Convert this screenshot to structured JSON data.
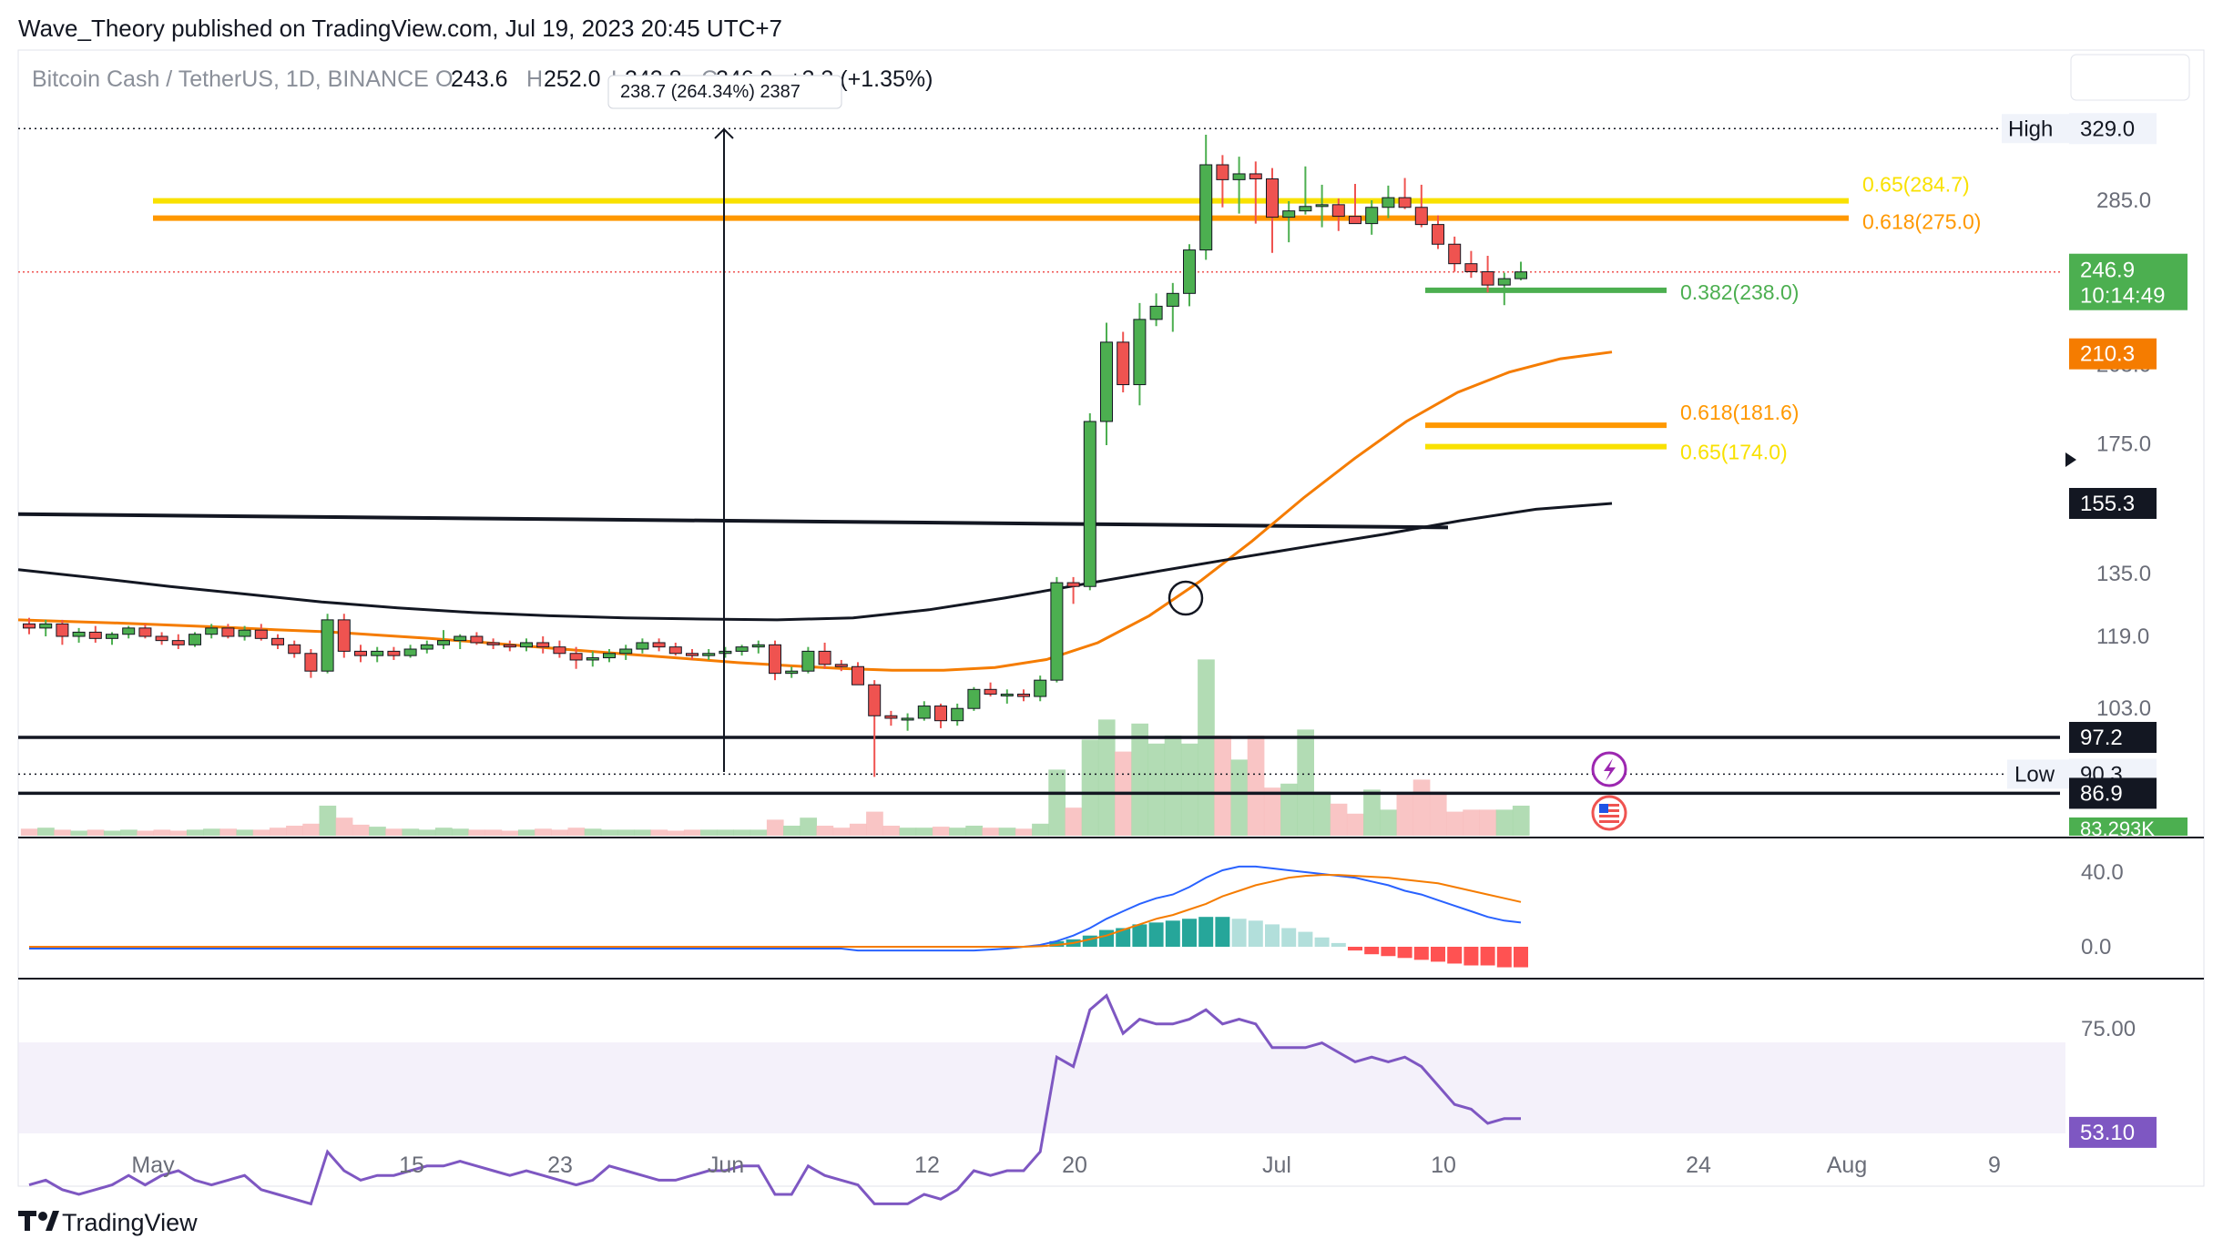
{
  "header": {
    "publisher": "Wave_Theory published on TradingView.com, Jul 19, 2023 20:45 UTC+7",
    "symbol": "Bitcoin Cash / TetherUS, 1D, BINANCE",
    "o_key": "O",
    "o_val": "243.6",
    "h_key": "H",
    "h_val": "252.0",
    "l_key": "L",
    "l_val": "242.8",
    "c_key": "C",
    "c_val": "246.9",
    "change": "+3.3 (+1.35%)",
    "measure_label": "238.7 (264.34%) 2387"
  },
  "footer": {
    "brand": "TradingView"
  },
  "colors": {
    "up": "#4caf50",
    "down": "#ef5350",
    "ema_orange": "#f57c00",
    "ma_black": "#131722",
    "fib_yellow": "#f9e100",
    "fib_orange": "#ff9800",
    "fib_green": "#4caf50",
    "macd_blue": "#2962ff",
    "rsi": "#7e57c2",
    "text": "#131722"
  },
  "chart_data": [
    {
      "type": "candlestick",
      "title": "Bitcoin Cash / TetherUS, 1D, BINANCE",
      "yscale": "log",
      "y_ticks": [
        "285.0",
        "205.0",
        "175.0",
        "135.0",
        "119.0",
        "103.0"
      ],
      "x_ticks": [
        "May",
        "15",
        "23",
        "Jun",
        "12",
        "20",
        "Jul",
        "10",
        "24",
        "Aug",
        "9"
      ],
      "grid": false,
      "candles": [
        [
          122.0,
          123.5,
          119.5,
          121.0
        ],
        [
          121.0,
          123.0,
          119.0,
          122.0
        ],
        [
          122.0,
          123.0,
          117.0,
          119.0
        ],
        [
          119.0,
          121.0,
          117.5,
          120.0
        ],
        [
          120.0,
          121.5,
          117.5,
          118.5
        ],
        [
          118.5,
          120.0,
          117.0,
          119.5
        ],
        [
          119.5,
          121.5,
          118.5,
          121.0
        ],
        [
          121.0,
          122.0,
          118.5,
          119.0
        ],
        [
          119.0,
          120.0,
          117.0,
          118.0
        ],
        [
          118.0,
          119.5,
          116.0,
          117.0
        ],
        [
          117.0,
          120.0,
          116.5,
          119.5
        ],
        [
          119.5,
          122.0,
          118.5,
          121.0
        ],
        [
          121.0,
          122.0,
          118.5,
          119.0
        ],
        [
          119.0,
          121.5,
          118.0,
          120.5
        ],
        [
          120.5,
          122.0,
          118.0,
          118.5
        ],
        [
          118.5,
          119.5,
          116.0,
          117.0
        ],
        [
          117.0,
          118.0,
          114.0,
          115.0
        ],
        [
          115.0,
          116.0,
          109.5,
          111.0
        ],
        [
          111.0,
          124.5,
          110.5,
          123.0
        ],
        [
          123.0,
          124.5,
          114.0,
          115.5
        ],
        [
          115.5,
          117.0,
          113.0,
          114.5
        ],
        [
          114.5,
          116.5,
          113.0,
          115.5
        ],
        [
          115.5,
          116.5,
          113.5,
          114.5
        ],
        [
          114.5,
          117.0,
          114.0,
          116.0
        ],
        [
          116.0,
          118.0,
          115.0,
          117.0
        ],
        [
          117.0,
          120.5,
          116.0,
          118.0
        ],
        [
          118.0,
          119.5,
          116.0,
          119.0
        ],
        [
          119.0,
          120.0,
          117.0,
          117.5
        ],
        [
          117.5,
          118.5,
          116.0,
          117.0
        ],
        [
          117.0,
          118.0,
          115.5,
          116.5
        ],
        [
          116.5,
          118.5,
          115.5,
          117.5
        ],
        [
          117.5,
          119.0,
          115.0,
          116.5
        ],
        [
          116.5,
          118.0,
          114.0,
          115.0
        ],
        [
          115.0,
          116.5,
          111.5,
          113.5
        ],
        [
          113.5,
          115.5,
          112.0,
          114.0
        ],
        [
          114.0,
          116.0,
          113.0,
          115.0
        ],
        [
          115.0,
          117.0,
          113.5,
          116.0
        ],
        [
          116.0,
          118.5,
          115.0,
          117.5
        ],
        [
          117.5,
          118.5,
          115.5,
          116.5
        ],
        [
          116.5,
          117.5,
          114.5,
          115.0
        ],
        [
          115.0,
          116.0,
          113.5,
          114.5
        ],
        [
          114.5,
          116.0,
          113.5,
          115.0
        ],
        [
          115.0,
          116.5,
          114.0,
          115.5
        ],
        [
          115.5,
          117.0,
          114.5,
          116.5
        ],
        [
          116.5,
          118.0,
          115.0,
          117.0
        ],
        [
          117.0,
          118.0,
          109.0,
          110.5
        ],
        [
          110.5,
          112.0,
          109.5,
          111.0
        ],
        [
          111.0,
          116.5,
          110.5,
          115.5
        ],
        [
          115.5,
          117.5,
          111.5,
          112.5
        ],
        [
          112.5,
          113.5,
          111.0,
          112.0
        ],
        [
          112.0,
          113.0,
          109.0,
          108.0
        ],
        [
          108.0,
          109.0,
          89.8,
          101.5
        ],
        [
          101.5,
          102.5,
          99.5,
          101.0
        ],
        [
          101.0,
          102.0,
          98.5,
          101.0
        ],
        [
          101.0,
          104.5,
          100.5,
          103.5
        ],
        [
          103.5,
          104.0,
          99.0,
          100.5
        ],
        [
          100.5,
          104.0,
          99.5,
          103.0
        ],
        [
          103.0,
          107.5,
          102.5,
          107.0
        ],
        [
          107.0,
          108.5,
          105.5,
          106.0
        ],
        [
          106.0,
          107.0,
          104.0,
          106.0
        ],
        [
          106.0,
          107.0,
          104.5,
          105.5
        ],
        [
          105.5,
          110.0,
          104.5,
          109.0
        ],
        [
          109.0,
          134.0,
          108.5,
          132.5
        ],
        [
          132.5,
          134.0,
          127.0,
          131.5
        ],
        [
          131.5,
          186.0,
          130.5,
          183.0
        ],
        [
          183.0,
          223.0,
          174.5,
          214.5
        ],
        [
          214.5,
          219.0,
          194.0,
          197.0
        ],
        [
          197.0,
          232.0,
          189.0,
          224.5
        ],
        [
          224.5,
          236.5,
          221.5,
          230.5
        ],
        [
          230.5,
          241.5,
          219.0,
          236.5
        ],
        [
          236.5,
          261.0,
          230.5,
          258.0
        ],
        [
          258.0,
          325.0,
          253.0,
          306.0
        ],
        [
          306.0,
          312.0,
          281.0,
          297.0
        ],
        [
          297.0,
          311.0,
          277.5,
          300.5
        ],
        [
          300.5,
          308.0,
          272.0,
          297.5
        ],
        [
          297.5,
          304.0,
          256.5,
          275.5
        ],
        [
          275.5,
          284.5,
          262.0,
          279.0
        ],
        [
          279.0,
          305.0,
          277.0,
          281.5
        ],
        [
          281.5,
          294.0,
          270.0,
          282.5
        ],
        [
          282.5,
          286.0,
          268.0,
          276.0
        ],
        [
          276.0,
          294.5,
          273.5,
          272.0
        ],
        [
          272.0,
          285.0,
          266.0,
          281.0
        ],
        [
          281.0,
          293.5,
          275.0,
          286.5
        ],
        [
          286.5,
          298.0,
          280.0,
          281.0
        ],
        [
          281.0,
          294.0,
          270.0,
          271.5
        ],
        [
          271.5,
          276.5,
          258.5,
          261.0
        ],
        [
          261.0,
          265.0,
          247.0,
          251.0
        ],
        [
          251.0,
          257.5,
          244.0,
          247.0
        ],
        [
          247.0,
          255.0,
          237.0,
          240.5
        ],
        [
          240.5,
          246.5,
          231.0,
          243.6
        ],
        [
          243.6,
          252.0,
          242.8,
          246.9
        ]
      ],
      "ema_orange": [
        123,
        122.6,
        122.2,
        121.7,
        121.2,
        120.6,
        120.1,
        119.3,
        118.5,
        117.6,
        116.6,
        115.6,
        114.7,
        113.8,
        112.9,
        112.2,
        111.6,
        111.2,
        111.2,
        111.8,
        113.6,
        117.5,
        124.0,
        133.0,
        144.0,
        157.0,
        170.0,
        183.0,
        194.0,
        202.0,
        207.5,
        210.3
      ],
      "ma_black": [
        136.0,
        133.8,
        131.5,
        129.5,
        127.5,
        126.0,
        124.8,
        124.0,
        123.5,
        123.2,
        123.0,
        123.5,
        125.5,
        128.5,
        132.0,
        135.5,
        139.0,
        142.5,
        146.0,
        150.0,
        153.5,
        155.3
      ],
      "trendline_black": [
        152.0,
        148.0
      ],
      "horizontal_levels": [
        {
          "label": "97.2",
          "value": 97.2
        },
        {
          "label": "86.9",
          "value": 86.9
        }
      ],
      "high": {
        "label": "High",
        "value": "329.0"
      },
      "low": {
        "label": "Low",
        "value": "90.3"
      },
      "last_price": {
        "value": "246.9",
        "countdown": "10:14:49"
      },
      "ema_last": "210.3",
      "ma_last": "155.3",
      "volume_last": "83.293K",
      "fib_levels": [
        {
          "label": "0.65(284.7)",
          "value": 284.7,
          "color": "#f9e100"
        },
        {
          "label": "0.618(275.0)",
          "value": 275.0,
          "color": "#ff9800"
        },
        {
          "label": "0.382(238.0)",
          "value": 238.0,
          "color": "#4caf50"
        },
        {
          "label": "0.618(181.6)",
          "value": 181.6,
          "color": "#ff9800"
        },
        {
          "label": "0.65(174.0)",
          "value": 174.0,
          "color": "#f9e100"
        }
      ],
      "volume": [
        0.35,
        0.4,
        0.3,
        0.25,
        0.3,
        0.25,
        0.3,
        0.25,
        0.3,
        0.25,
        0.3,
        0.35,
        0.35,
        0.3,
        0.3,
        0.4,
        0.5,
        0.6,
        1.5,
        0.9,
        0.55,
        0.45,
        0.35,
        0.35,
        0.3,
        0.4,
        0.35,
        0.3,
        0.3,
        0.25,
        0.3,
        0.35,
        0.3,
        0.4,
        0.35,
        0.3,
        0.3,
        0.3,
        0.3,
        0.25,
        0.3,
        0.3,
        0.3,
        0.3,
        0.3,
        0.8,
        0.5,
        0.9,
        0.5,
        0.4,
        0.6,
        1.2,
        0.5,
        0.4,
        0.4,
        0.45,
        0.4,
        0.5,
        0.4,
        0.4,
        0.35,
        0.6,
        3.3,
        1.4,
        4.8,
        5.8,
        4.2,
        5.6,
        4.6,
        5.0,
        4.6,
        8.8,
        5.0,
        3.8,
        5.0,
        2.4,
        2.6,
        5.3,
        2.2,
        1.6,
        1.1,
        2.3,
        1.3,
        2.1,
        2.8,
        2.2,
        1.2,
        1.3,
        1.3,
        1.3,
        1.5
      ]
    },
    {
      "type": "macd",
      "y_ticks": [
        "40.0",
        "0.0"
      ],
      "histogram": [
        0,
        0,
        0,
        0,
        0,
        0,
        0,
        0,
        0,
        0,
        0,
        0,
        0,
        0,
        0,
        0,
        0,
        0,
        0,
        0,
        0,
        0,
        0,
        0,
        0,
        0,
        0,
        0,
        0,
        0,
        0,
        0,
        0,
        0,
        0,
        0,
        0,
        0,
        0,
        0,
        0,
        0,
        0,
        0,
        0,
        0,
        0,
        0,
        0,
        0,
        0,
        0,
        0,
        0,
        0,
        0,
        0,
        0,
        0,
        0,
        0.5,
        1,
        3,
        4,
        6,
        9,
        10,
        12,
        13,
        14,
        15,
        16,
        16,
        15,
        14,
        12,
        10,
        8,
        5,
        2,
        -2,
        -4,
        -5,
        -6,
        -7,
        -8,
        -9,
        -10,
        -10,
        -11,
        -11
      ],
      "macd_line": [
        -1,
        -1,
        -1,
        -1,
        -1,
        -1,
        -1,
        -1,
        -1,
        -1,
        -1,
        -1,
        -1,
        -1,
        -1,
        -1,
        -1,
        -1,
        -1,
        -1,
        -1,
        -1,
        -1,
        -1,
        -1,
        -1,
        -1,
        -1,
        -1,
        -1,
        -1,
        -1,
        -1,
        -1,
        -1,
        -1,
        -1,
        -1,
        -1,
        -1,
        -1,
        -1,
        -1,
        -1,
        -1,
        -1,
        -1,
        -1,
        -1,
        -1,
        -2,
        -2,
        -2,
        -2,
        -2,
        -2,
        -2,
        -2,
        -1.5,
        -1,
        0,
        1,
        3,
        6,
        10,
        15,
        19,
        23,
        26,
        28,
        32,
        37,
        41,
        43,
        43,
        42,
        41,
        40,
        39,
        38,
        37,
        35,
        33,
        30,
        28,
        25,
        22,
        19,
        16,
        14,
        13
      ],
      "signal_line": [
        0,
        0,
        0,
        0,
        0,
        0,
        0,
        0,
        0,
        0,
        0,
        0,
        0,
        0,
        0,
        0,
        0,
        0,
        0,
        0,
        0,
        0,
        0,
        0,
        0,
        0,
        0,
        0,
        0,
        0,
        0,
        0,
        0,
        0,
        0,
        0,
        0,
        0,
        0,
        0,
        0,
        0,
        0,
        0,
        0,
        0,
        0,
        0,
        0,
        0,
        0,
        0,
        0,
        0,
        0,
        0,
        0,
        0,
        0,
        0,
        0,
        0.3,
        1,
        2,
        4,
        6,
        9,
        12,
        15,
        17,
        20,
        23,
        27,
        30,
        33,
        35,
        37,
        38,
        38.5,
        38.5,
        38,
        37.5,
        37,
        36,
        35,
        34,
        32,
        30,
        28,
        26,
        24
      ]
    },
    {
      "type": "rsi",
      "y_ticks": [
        "75.00"
      ],
      "last": "53.10",
      "values": [
        42,
        43,
        41,
        40,
        41,
        42,
        44,
        42,
        44,
        45,
        43,
        42,
        43,
        44,
        41,
        40,
        39,
        38,
        49,
        45,
        43,
        44,
        44,
        45,
        46,
        46,
        47,
        46,
        45,
        44,
        45,
        44,
        43,
        42,
        43,
        46,
        45,
        44,
        43,
        43,
        44,
        45,
        45,
        46,
        46,
        40,
        40,
        46,
        44,
        43,
        42,
        38,
        38,
        38,
        40,
        39,
        41,
        45,
        44,
        45,
        45,
        49,
        69,
        67,
        79,
        82,
        74,
        77,
        76,
        76,
        77,
        79,
        76,
        77,
        76,
        71,
        71,
        71,
        72,
        70,
        68,
        69,
        68,
        69,
        67,
        63,
        59,
        58,
        55,
        56,
        56
      ]
    }
  ]
}
